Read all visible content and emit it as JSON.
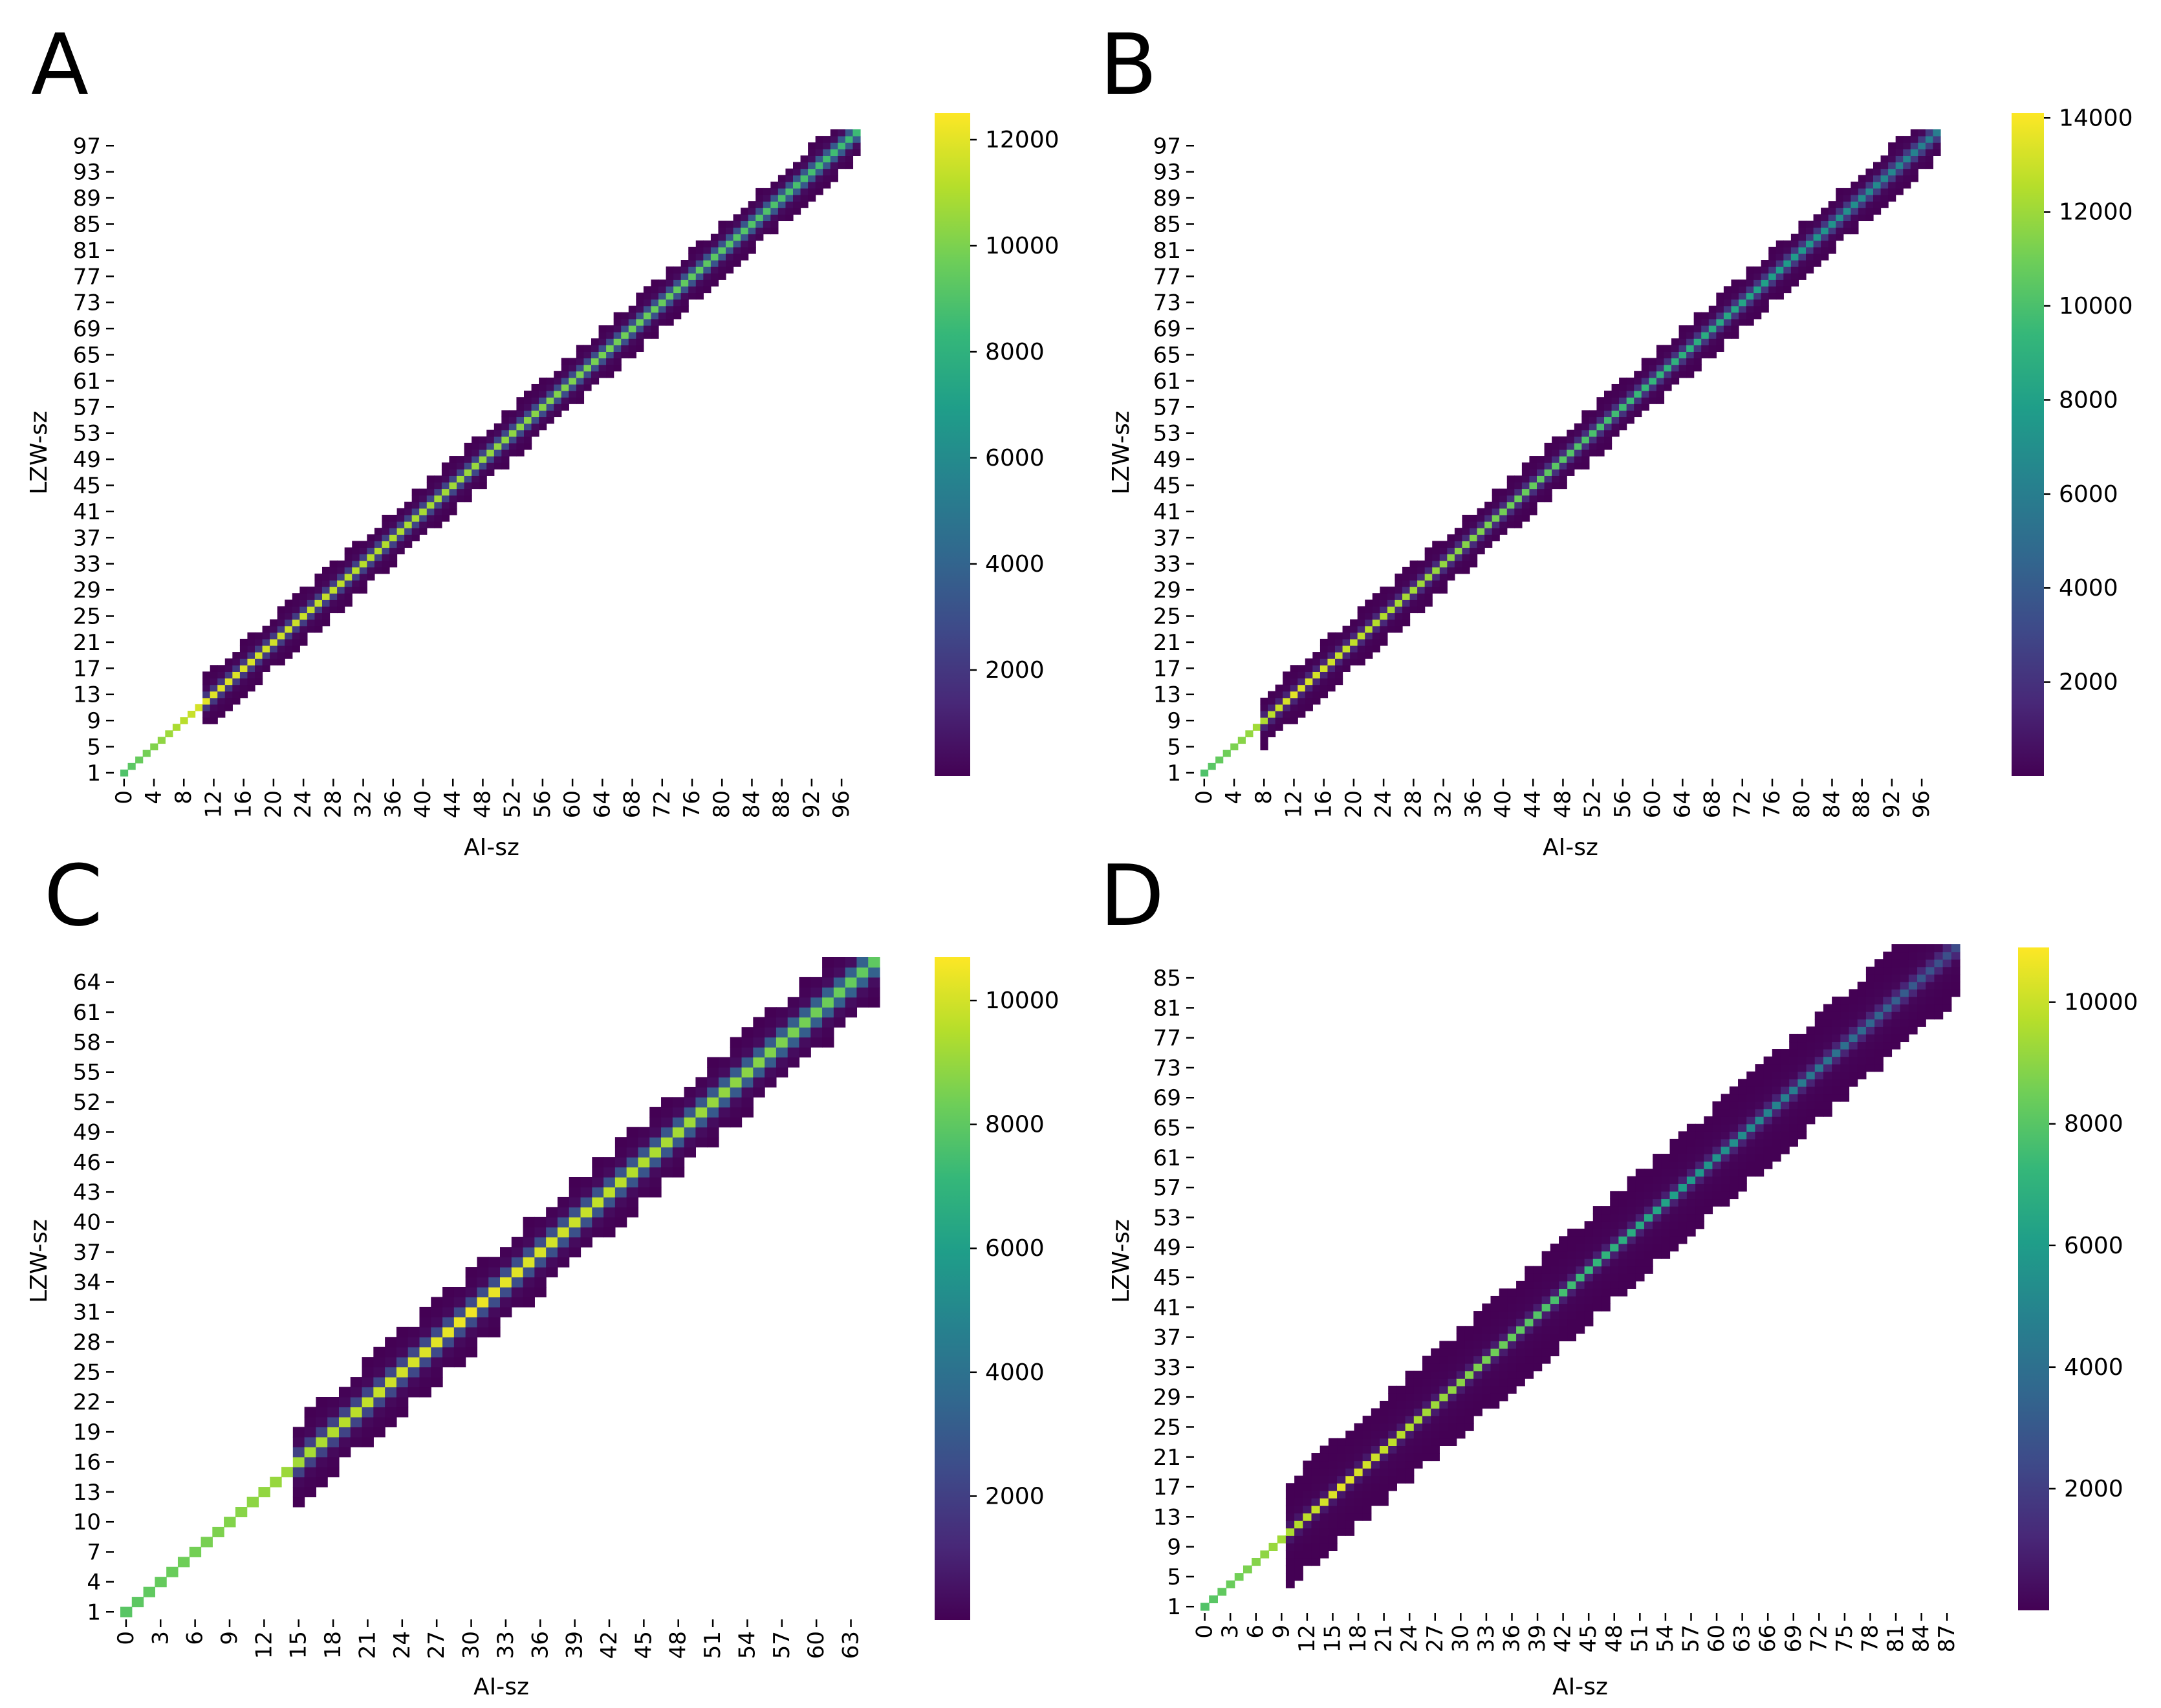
{
  "chart_data": [
    {
      "panel": "A",
      "type": "heatmap",
      "xlabel": "AI-sz",
      "ylabel": "LZW-sz",
      "n": 99,
      "x_tick_labels": [
        0,
        4,
        8,
        12,
        16,
        20,
        24,
        28,
        32,
        36,
        40,
        44,
        48,
        52,
        56,
        60,
        64,
        68,
        72,
        76,
        80,
        84,
        88,
        92,
        96
      ],
      "y_tick_labels": [
        1,
        5,
        9,
        13,
        17,
        21,
        25,
        29,
        33,
        37,
        41,
        45,
        49,
        53,
        57,
        61,
        65,
        69,
        73,
        77,
        81,
        85,
        89,
        93,
        97
      ],
      "colorbar_ticks": [
        2000,
        4000,
        6000,
        8000,
        10000,
        12000
      ],
      "colorbar_range": [
        0,
        12500
      ],
      "diagonal_peak": 12000,
      "diagonal_tail": 8500,
      "band_start": 11,
      "band_half_width": 4,
      "peak_at": 11
    },
    {
      "panel": "B",
      "type": "heatmap",
      "xlabel": "AI-sz",
      "ylabel": "LZW-sz",
      "n": 99,
      "x_tick_labels": [
        0,
        4,
        8,
        12,
        16,
        20,
        24,
        28,
        32,
        36,
        40,
        44,
        48,
        52,
        56,
        60,
        64,
        68,
        72,
        76,
        80,
        84,
        88,
        92,
        96
      ],
      "y_tick_labels": [
        1,
        5,
        9,
        13,
        17,
        21,
        25,
        29,
        33,
        37,
        41,
        45,
        49,
        53,
        57,
        61,
        65,
        69,
        73,
        77,
        81,
        85,
        89,
        93,
        97
      ],
      "colorbar_ticks": [
        2000,
        4000,
        6000,
        8000,
        10000,
        12000,
        14000
      ],
      "colorbar_range": [
        0,
        14100
      ],
      "diagonal_peak": 13500,
      "diagonal_tail": 6000,
      "band_start": 8,
      "band_half_width": 4,
      "peak_at": 12
    },
    {
      "panel": "C",
      "type": "heatmap",
      "xlabel": "AI-sz",
      "ylabel": "LZW-sz",
      "n": 66,
      "x_tick_labels": [
        0,
        3,
        6,
        9,
        12,
        15,
        18,
        21,
        24,
        27,
        30,
        33,
        36,
        39,
        42,
        45,
        48,
        51,
        54,
        57,
        60,
        63
      ],
      "y_tick_labels": [
        1,
        4,
        7,
        10,
        13,
        16,
        19,
        22,
        25,
        28,
        31,
        34,
        37,
        40,
        43,
        46,
        49,
        52,
        55,
        58,
        61,
        64
      ],
      "colorbar_ticks": [
        2000,
        4000,
        6000,
        8000,
        10000
      ],
      "colorbar_range": [
        0,
        10700
      ],
      "diagonal_peak": 10500,
      "diagonal_tail": 8000,
      "band_start": 15,
      "band_half_width": 4,
      "peak_at": 30
    },
    {
      "panel": "D",
      "type": "heatmap",
      "xlabel": "AI-sz",
      "ylabel": "LZW-sz",
      "n": 89,
      "x_tick_labels": [
        0,
        3,
        6,
        9,
        12,
        15,
        18,
        21,
        24,
        27,
        30,
        33,
        36,
        39,
        42,
        45,
        48,
        51,
        54,
        57,
        60,
        63,
        66,
        69,
        72,
        75,
        78,
        81,
        84,
        87
      ],
      "y_tick_labels": [
        1,
        5,
        9,
        13,
        17,
        21,
        25,
        29,
        33,
        37,
        41,
        45,
        49,
        53,
        57,
        61,
        65,
        69,
        73,
        77,
        81,
        85
      ],
      "colorbar_ticks": [
        2000,
        4000,
        6000,
        8000,
        10000
      ],
      "colorbar_range": [
        0,
        10900
      ],
      "diagonal_peak": 10500,
      "diagonal_tail": 2500,
      "band_start": 10,
      "band_half_width": 7,
      "peak_at": 16
    }
  ]
}
